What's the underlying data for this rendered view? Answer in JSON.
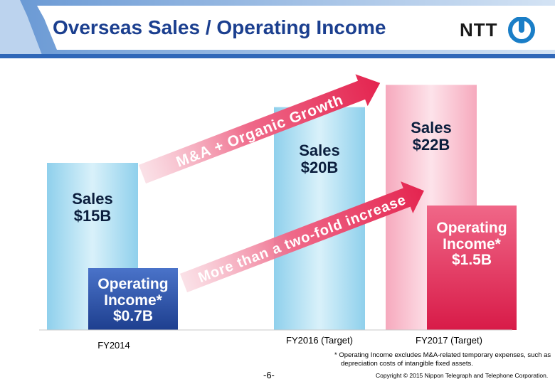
{
  "slide": {
    "title": "Overseas Sales / Operating Income",
    "logo_text": "NTT",
    "page_number": "-6-",
    "copyright": "Copyright © 2015 Nippon Telegraph and Telephone Corporation.",
    "footnote_line1": "* Operating Income excludes M&A-related temporary expenses, such as",
    "footnote_line2": "depreciation costs of intangible fixed assets.",
    "arrow_top_text": "M&A + Organic Growth",
    "arrow_bottom_text": "More than a two-fold increase"
  },
  "labels": {
    "fy2014_sales": [
      "Sales",
      "$15B"
    ],
    "fy2014_oi": [
      "Operating",
      "Income*",
      "$0.7B"
    ],
    "fy2016_sales": [
      "Sales",
      "$20B"
    ],
    "fy2017_sales": [
      "Sales",
      "$22B"
    ],
    "fy2017_oi": [
      "Operating",
      "Income*",
      "$1.5B"
    ]
  },
  "chart_data": {
    "type": "bar",
    "categories": [
      "FY2014",
      "FY2016 (Target)",
      "FY2017 (Target)"
    ],
    "series": [
      {
        "name": "Sales",
        "values": [
          15,
          20,
          22
        ]
      },
      {
        "name": "Operating Income",
        "values": [
          0.7,
          null,
          1.5
        ]
      }
    ],
    "sales_text": [
      "$15B",
      "$20B",
      "$22B"
    ],
    "oi_text": [
      "$0.7B",
      null,
      "$1.5B"
    ],
    "colors": {
      "sales_blue_light": "#d9f1fa",
      "sales_blue_dark": "#8fd0ec",
      "sales_pink_light": "#fde3ea",
      "sales_pink_dark": "#f6a9bd",
      "oi_blue_light": "#4a73c9",
      "oi_blue_dark": "#1e3f8f",
      "oi_pink_light": "#f06788",
      "oi_pink_dark": "#d81b48",
      "arrow": "#e8335a"
    }
  }
}
